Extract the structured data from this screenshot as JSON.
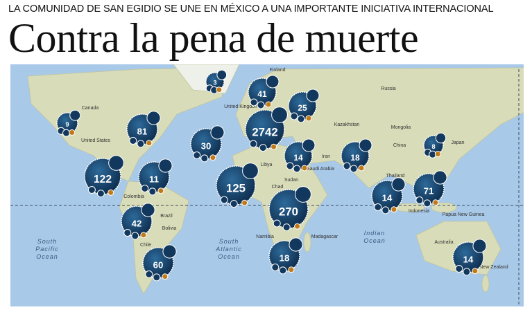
{
  "header": {
    "kicker": "LA COMUNIDAD DE SAN EGIDIO SE UNE EN MÉXICO A UNA IMPORTANTE INICIATIVA INTERNACIONAL",
    "title": "Contra la pena de muerte"
  },
  "map": {
    "countries": [
      "Finland",
      "Russia",
      "Canada",
      "United Kingdom",
      "Kazakhstan",
      "Mongolia",
      "United States",
      "China",
      "Japan",
      "Libya",
      "Saudi Arabia",
      "Iran",
      "Chad",
      "Sudan",
      "Thailand",
      "Colombia",
      "Brazil",
      "Indonesia",
      "Papua New Guinea",
      "Bolivia",
      "Namibia",
      "Madagascar",
      "Chile",
      "Australia",
      "New Zealand"
    ],
    "oceans": [
      [
        "South",
        "Pacific",
        "Ocean"
      ],
      [
        "South",
        "Atlantic",
        "Ocean"
      ],
      [
        "Indian",
        "Ocean"
      ]
    ],
    "markers": [
      "3",
      "41",
      "25",
      "9",
      "81",
      "2742",
      "30",
      "14",
      "18",
      "8",
      "122",
      "11",
      "125",
      "14",
      "71",
      "270",
      "42",
      "18",
      "60",
      "14"
    ]
  }
}
